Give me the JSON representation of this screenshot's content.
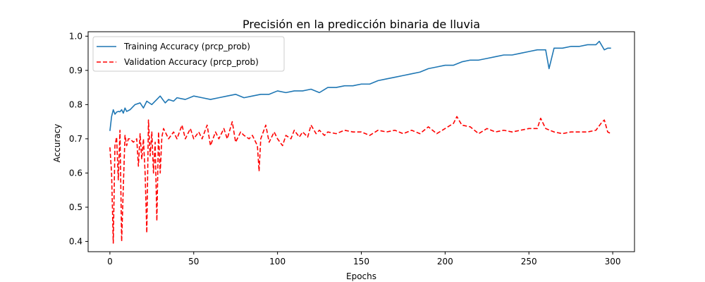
{
  "chart_data": {
    "type": "line",
    "title": "Precisión en la predicción binaria de lluvia",
    "xlabel": "Epochs",
    "ylabel": "Accuracy",
    "xlim": [
      -13,
      313
    ],
    "ylim": [
      0.37,
      1.013
    ],
    "xticks": [
      0,
      50,
      100,
      150,
      200,
      250,
      300
    ],
    "yticks": [
      0.4,
      0.5,
      0.6,
      0.7,
      0.8,
      0.9,
      1.0
    ],
    "ytick_labels": [
      "0.4",
      "0.5",
      "0.6",
      "0.7",
      "0.8",
      "0.9",
      "1.0"
    ],
    "grid": false,
    "legend_position": "upper-left",
    "series": [
      {
        "name": "Training Accuracy (prcp_prob)",
        "color": "#1f77b4",
        "style": "solid",
        "x": [
          0,
          1,
          2,
          3,
          4,
          5,
          6,
          7,
          8,
          9,
          10,
          12,
          15,
          18,
          20,
          22,
          25,
          28,
          30,
          33,
          35,
          38,
          40,
          45,
          50,
          55,
          60,
          65,
          70,
          75,
          80,
          85,
          90,
          95,
          100,
          105,
          110,
          115,
          120,
          125,
          130,
          135,
          140,
          145,
          150,
          155,
          160,
          165,
          170,
          175,
          180,
          185,
          190,
          195,
          200,
          205,
          210,
          215,
          220,
          225,
          230,
          235,
          240,
          245,
          250,
          255,
          260,
          262,
          265,
          270,
          275,
          280,
          285,
          290,
          292,
          295,
          297,
          299
        ],
        "y": [
          0.723,
          0.765,
          0.785,
          0.772,
          0.778,
          0.78,
          0.779,
          0.785,
          0.775,
          0.79,
          0.78,
          0.785,
          0.8,
          0.805,
          0.79,
          0.81,
          0.8,
          0.815,
          0.825,
          0.805,
          0.815,
          0.81,
          0.82,
          0.815,
          0.825,
          0.82,
          0.815,
          0.82,
          0.825,
          0.83,
          0.82,
          0.825,
          0.83,
          0.83,
          0.84,
          0.835,
          0.84,
          0.84,
          0.845,
          0.835,
          0.85,
          0.85,
          0.855,
          0.855,
          0.86,
          0.86,
          0.87,
          0.875,
          0.88,
          0.885,
          0.89,
          0.895,
          0.905,
          0.91,
          0.915,
          0.915,
          0.925,
          0.93,
          0.93,
          0.935,
          0.94,
          0.945,
          0.945,
          0.95,
          0.955,
          0.96,
          0.96,
          0.905,
          0.965,
          0.965,
          0.97,
          0.97,
          0.975,
          0.975,
          0.985,
          0.96,
          0.965,
          0.965
        ]
      },
      {
        "name": "Validation Accuracy (prcp_prob)",
        "color": "#ff0000",
        "style": "dashed",
        "x": [
          0,
          1,
          2,
          3,
          4,
          5,
          6,
          7,
          8,
          9,
          10,
          11,
          12,
          14,
          16,
          17,
          18,
          19,
          20,
          21,
          22,
          23,
          24,
          25,
          26,
          27,
          28,
          29,
          30,
          31,
          32,
          35,
          38,
          40,
          43,
          45,
          48,
          50,
          53,
          55,
          58,
          60,
          63,
          65,
          68,
          70,
          73,
          75,
          78,
          80,
          83,
          85,
          88,
          89,
          90,
          93,
          95,
          98,
          100,
          103,
          105,
          108,
          110,
          113,
          115,
          118,
          120,
          123,
          125,
          128,
          130,
          135,
          140,
          145,
          150,
          155,
          160,
          165,
          170,
          175,
          180,
          185,
          190,
          195,
          200,
          205,
          207,
          210,
          215,
          220,
          225,
          230,
          235,
          240,
          245,
          250,
          255,
          257,
          260,
          265,
          270,
          275,
          280,
          285,
          290,
          293,
          295,
          297,
          299
        ],
        "y": [
          0.675,
          0.6,
          0.395,
          0.68,
          0.705,
          0.58,
          0.725,
          0.4,
          0.56,
          0.71,
          0.68,
          0.7,
          0.7,
          0.69,
          0.7,
          0.62,
          0.715,
          0.64,
          0.7,
          0.6,
          0.425,
          0.755,
          0.65,
          0.72,
          0.6,
          0.69,
          0.46,
          0.72,
          0.6,
          0.705,
          0.73,
          0.7,
          0.72,
          0.7,
          0.74,
          0.7,
          0.73,
          0.7,
          0.72,
          0.7,
          0.74,
          0.68,
          0.72,
          0.7,
          0.73,
          0.7,
          0.75,
          0.69,
          0.72,
          0.71,
          0.7,
          0.71,
          0.68,
          0.605,
          0.7,
          0.74,
          0.69,
          0.72,
          0.7,
          0.68,
          0.71,
          0.7,
          0.725,
          0.705,
          0.72,
          0.705,
          0.74,
          0.715,
          0.725,
          0.71,
          0.72,
          0.715,
          0.725,
          0.72,
          0.72,
          0.71,
          0.725,
          0.72,
          0.725,
          0.715,
          0.725,
          0.715,
          0.735,
          0.715,
          0.73,
          0.745,
          0.765,
          0.74,
          0.735,
          0.715,
          0.73,
          0.72,
          0.725,
          0.72,
          0.725,
          0.73,
          0.73,
          0.76,
          0.73,
          0.72,
          0.715,
          0.72,
          0.72,
          0.72,
          0.725,
          0.745,
          0.755,
          0.72,
          0.715
        ]
      }
    ]
  }
}
